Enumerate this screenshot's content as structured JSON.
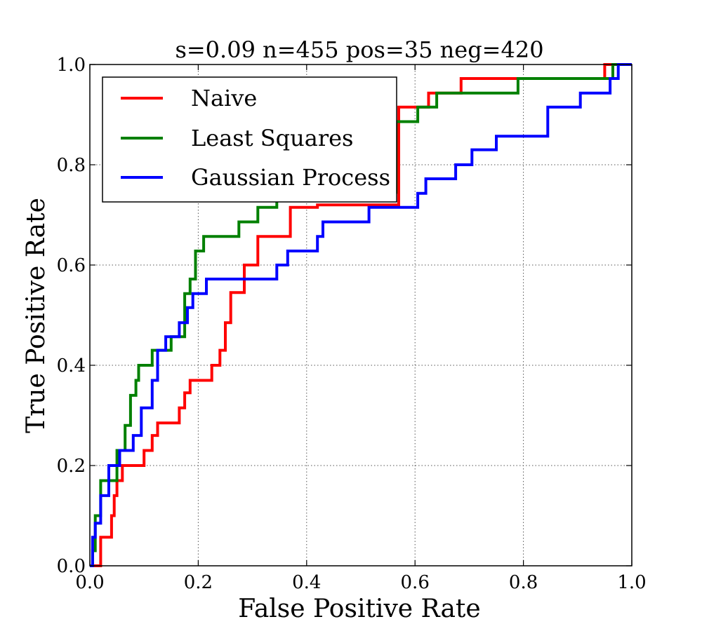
{
  "chart_data": {
    "type": "line",
    "title": "s=0.09 n=455 pos=35 neg=420",
    "xlabel": "False Positive Rate",
    "ylabel": "True Positive Rate",
    "xlim": [
      0.0,
      1.0
    ],
    "ylim": [
      0.0,
      1.0
    ],
    "x_ticks": [
      "0.0",
      "0.2",
      "0.4",
      "0.6",
      "0.8",
      "1.0"
    ],
    "y_ticks": [
      "0.0",
      "0.2",
      "0.4",
      "0.6",
      "0.8",
      "1.0"
    ],
    "grid": true,
    "legend_position": "top-left",
    "series": [
      {
        "name": "Naive",
        "color": "#ff0000",
        "x": [
          0.0,
          0.02,
          0.02,
          0.04,
          0.04,
          0.045,
          0.045,
          0.05,
          0.05,
          0.06,
          0.06,
          0.065,
          0.065,
          0.1,
          0.1,
          0.115,
          0.115,
          0.125,
          0.125,
          0.165,
          0.165,
          0.175,
          0.175,
          0.185,
          0.185,
          0.225,
          0.225,
          0.24,
          0.24,
          0.25,
          0.25,
          0.26,
          0.26,
          0.285,
          0.285,
          0.31,
          0.31,
          0.37,
          0.37,
          0.42,
          0.42,
          0.57,
          0.57,
          0.625,
          0.625,
          0.685,
          0.685,
          0.95,
          0.95,
          1.0
        ],
        "y": [
          0.0,
          0.0,
          0.057,
          0.057,
          0.1,
          0.1,
          0.14,
          0.14,
          0.17,
          0.17,
          0.2,
          0.2,
          0.2,
          0.2,
          0.23,
          0.23,
          0.26,
          0.26,
          0.285,
          0.285,
          0.315,
          0.315,
          0.345,
          0.345,
          0.37,
          0.37,
          0.4,
          0.4,
          0.43,
          0.43,
          0.485,
          0.485,
          0.545,
          0.545,
          0.6,
          0.6,
          0.657,
          0.657,
          0.715,
          0.715,
          0.72,
          0.72,
          0.915,
          0.915,
          0.943,
          0.943,
          0.972,
          0.972,
          1.0,
          1.0
        ]
      },
      {
        "name": "Least Squares",
        "color": "#008000",
        "x": [
          0.0,
          0.005,
          0.005,
          0.01,
          0.01,
          0.02,
          0.02,
          0.035,
          0.035,
          0.05,
          0.05,
          0.065,
          0.065,
          0.075,
          0.075,
          0.085,
          0.085,
          0.09,
          0.09,
          0.115,
          0.115,
          0.135,
          0.135,
          0.15,
          0.15,
          0.175,
          0.175,
          0.185,
          0.185,
          0.195,
          0.195,
          0.21,
          0.21,
          0.225,
          0.225,
          0.275,
          0.275,
          0.31,
          0.31,
          0.345,
          0.345,
          0.565,
          0.565,
          0.605,
          0.605,
          0.64,
          0.64,
          0.79,
          0.79,
          0.965,
          0.965,
          1.0
        ],
        "y": [
          0.0,
          0.0,
          0.03,
          0.03,
          0.1,
          0.1,
          0.17,
          0.17,
          0.17,
          0.17,
          0.23,
          0.23,
          0.28,
          0.28,
          0.34,
          0.34,
          0.37,
          0.37,
          0.4,
          0.4,
          0.43,
          0.43,
          0.43,
          0.43,
          0.457,
          0.457,
          0.543,
          0.543,
          0.572,
          0.572,
          0.628,
          0.628,
          0.657,
          0.657,
          0.657,
          0.657,
          0.686,
          0.686,
          0.715,
          0.715,
          0.745,
          0.745,
          0.886,
          0.886,
          0.915,
          0.915,
          0.943,
          0.943,
          0.972,
          0.972,
          1.0,
          1.0
        ]
      },
      {
        "name": "Gaussian Process",
        "color": "#0000ff",
        "x": [
          0.0,
          0.005,
          0.005,
          0.01,
          0.01,
          0.02,
          0.02,
          0.035,
          0.035,
          0.055,
          0.055,
          0.08,
          0.08,
          0.095,
          0.095,
          0.115,
          0.115,
          0.125,
          0.125,
          0.14,
          0.14,
          0.165,
          0.165,
          0.18,
          0.18,
          0.19,
          0.19,
          0.215,
          0.215,
          0.345,
          0.345,
          0.365,
          0.365,
          0.42,
          0.42,
          0.43,
          0.43,
          0.515,
          0.515,
          0.605,
          0.605,
          0.62,
          0.62,
          0.675,
          0.675,
          0.705,
          0.705,
          0.75,
          0.75,
          0.845,
          0.845,
          0.905,
          0.905,
          0.96,
          0.96,
          0.975,
          0.975,
          1.0
        ],
        "y": [
          0.0,
          0.0,
          0.057,
          0.057,
          0.085,
          0.085,
          0.14,
          0.14,
          0.2,
          0.2,
          0.23,
          0.23,
          0.26,
          0.26,
          0.315,
          0.315,
          0.37,
          0.37,
          0.43,
          0.43,
          0.457,
          0.457,
          0.485,
          0.485,
          0.515,
          0.515,
          0.543,
          0.543,
          0.572,
          0.572,
          0.6,
          0.6,
          0.628,
          0.628,
          0.657,
          0.657,
          0.686,
          0.686,
          0.715,
          0.715,
          0.743,
          0.743,
          0.772,
          0.772,
          0.8,
          0.8,
          0.83,
          0.83,
          0.857,
          0.857,
          0.915,
          0.915,
          0.943,
          0.943,
          0.972,
          0.972,
          1.0,
          1.0
        ]
      }
    ]
  }
}
